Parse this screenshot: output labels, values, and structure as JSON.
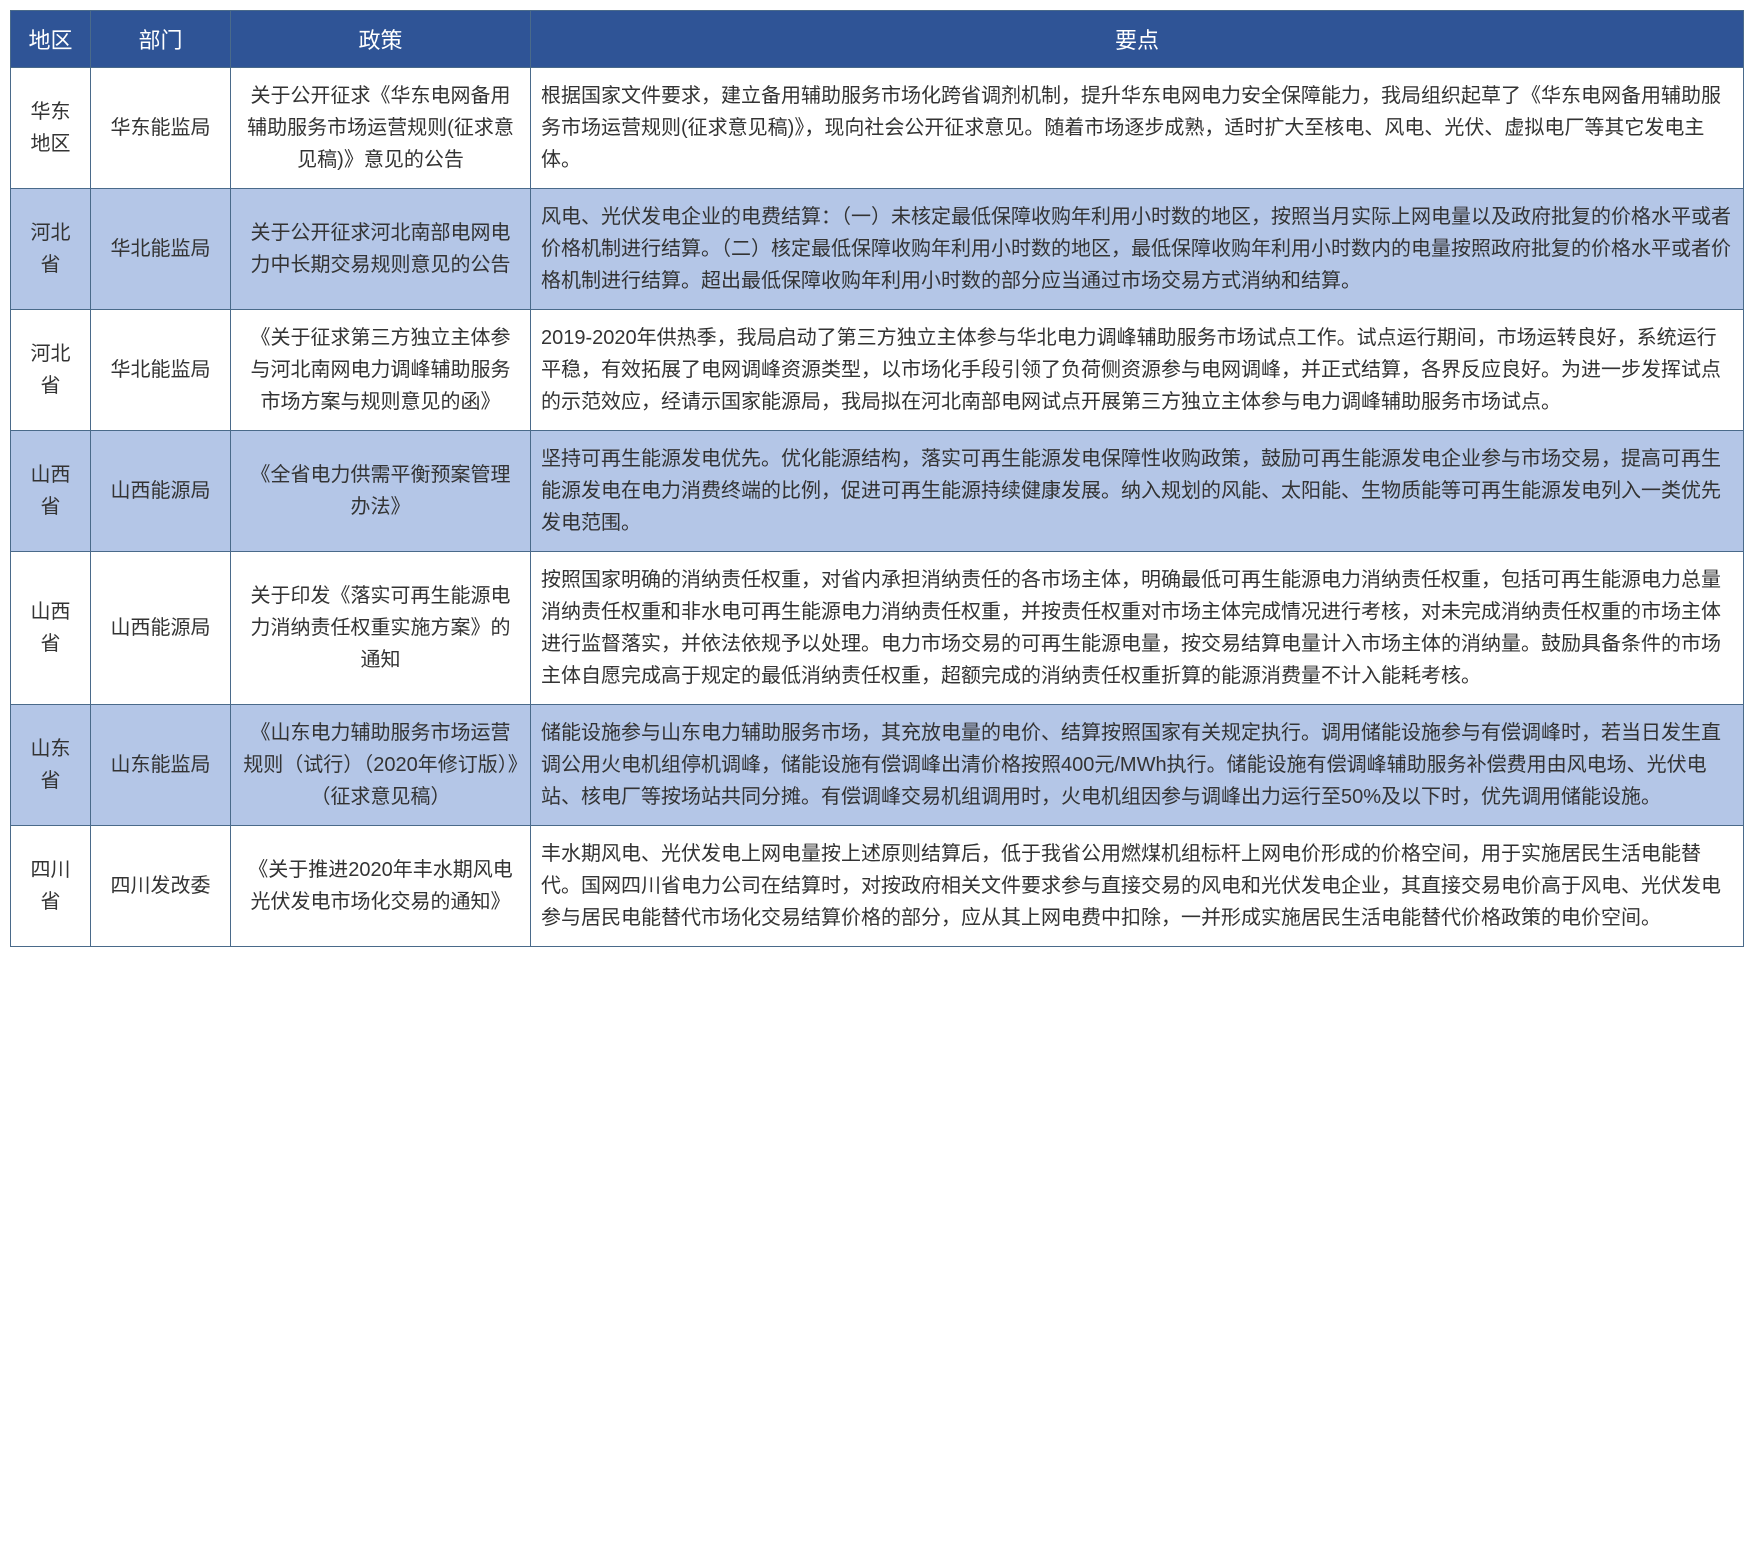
{
  "header_bg": "#2f5496",
  "row_alt_bg": "#b4c6e7",
  "row_bg": "#ffffff",
  "text_color": "#333333",
  "columns": [
    "地区",
    "部门",
    "政策",
    "要点"
  ],
  "rows": [
    {
      "region": "华东地区",
      "dept": "华东能监局",
      "policy": "关于公开征求《华东电网备用辅助服务市场运营规则(征求意见稿)》意见的公告",
      "points": "根据国家文件要求，建立备用辅助服务市场化跨省调剂机制，提升华东电网电力安全保障能力，我局组织起草了《华东电网备用辅助服务市场运营规则(征求意见稿)》，现向社会公开征求意见。随着市场逐步成熟，适时扩大至核电、风电、光伏、虚拟电厂等其它发电主体。"
    },
    {
      "region": "河北省",
      "dept": "华北能监局",
      "policy": "关于公开征求河北南部电网电力中长期交易规则意见的公告",
      "points": "风电、光伏发电企业的电费结算：（一）未核定最低保障收购年利用小时数的地区，按照当月实际上网电量以及政府批复的价格水平或者价格机制进行结算。（二）核定最低保障收购年利用小时数的地区，最低保障收购年利用小时数内的电量按照政府批复的价格水平或者价格机制进行结算。超出最低保障收购年利用小时数的部分应当通过市场交易方式消纳和结算。"
    },
    {
      "region": "河北省",
      "dept": "华北能监局",
      "policy": "《关于征求第三方独立主体参与河北南网电力调峰辅助服务市场方案与规则意见的函》",
      "points": "2019-2020年供热季，我局启动了第三方独立主体参与华北电力调峰辅助服务市场试点工作。试点运行期间，市场运转良好，系统运行平稳，有效拓展了电网调峰资源类型，以市场化手段引领了负荷侧资源参与电网调峰，并正式结算，各界反应良好。为进一步发挥试点的示范效应，经请示国家能源局，我局拟在河北南部电网试点开展第三方独立主体参与电力调峰辅助服务市场试点。"
    },
    {
      "region": "山西省",
      "dept": "山西能源局",
      "policy": "《全省电力供需平衡预案管理办法》",
      "points": "坚持可再生能源发电优先。优化能源结构，落实可再生能源发电保障性收购政策，鼓励可再生能源发电企业参与市场交易，提高可再生能源发电在电力消费终端的比例，促进可再生能源持续健康发展。纳入规划的风能、太阳能、生物质能等可再生能源发电列入一类优先发电范围。"
    },
    {
      "region": "山西省",
      "dept": "山西能源局",
      "policy": "关于印发《落实可再生能源电力消纳责任权重实施方案》的通知",
      "points": "按照国家明确的消纳责任权重，对省内承担消纳责任的各市场主体，明确最低可再生能源电力消纳责任权重，包括可再生能源电力总量消纳责任权重和非水电可再生能源电力消纳责任权重，并按责任权重对市场主体完成情况进行考核，对未完成消纳责任权重的市场主体进行监督落实，并依法依规予以处理。电力市场交易的可再生能源电量，按交易结算电量计入市场主体的消纳量。鼓励具备条件的市场主体自愿完成高于规定的最低消纳责任权重，超额完成的消纳责任权重折算的能源消费量不计入能耗考核。"
    },
    {
      "region": "山东省",
      "dept": "山东能监局",
      "policy": "《山东电力辅助服务市场运营规则（试行）（2020年修订版）》（征求意见稿）",
      "points": "储能设施参与山东电力辅助服务市场，其充放电量的电价、结算按照国家有关规定执行。调用储能设施参与有偿调峰时，若当日发生直调公用火电机组停机调峰，储能设施有偿调峰出清价格按照400元/MWh执行。储能设施有偿调峰辅助服务补偿费用由风电场、光伏电站、核电厂等按场站共同分摊。有偿调峰交易机组调用时，火电机组因参与调峰出力运行至50%及以下时，优先调用储能设施。"
    },
    {
      "region": "四川省",
      "dept": "四川发改委",
      "policy": "《关于推进2020年丰水期风电光伏发电市场化交易的通知》",
      "points": "丰水期风电、光伏发电上网电量按上述原则结算后，低于我省公用燃煤机组标杆上网电价形成的价格空间，用于实施居民生活电能替代。国网四川省电力公司在结算时，对按政府相关文件要求参与直接交易的风电和光伏发电企业，其直接交易电价高于风电、光伏发电参与居民电能替代市场化交易结算价格的部分，应从其上网电费中扣除，一并形成实施居民生活电能替代价格政策的电价空间。"
    }
  ]
}
